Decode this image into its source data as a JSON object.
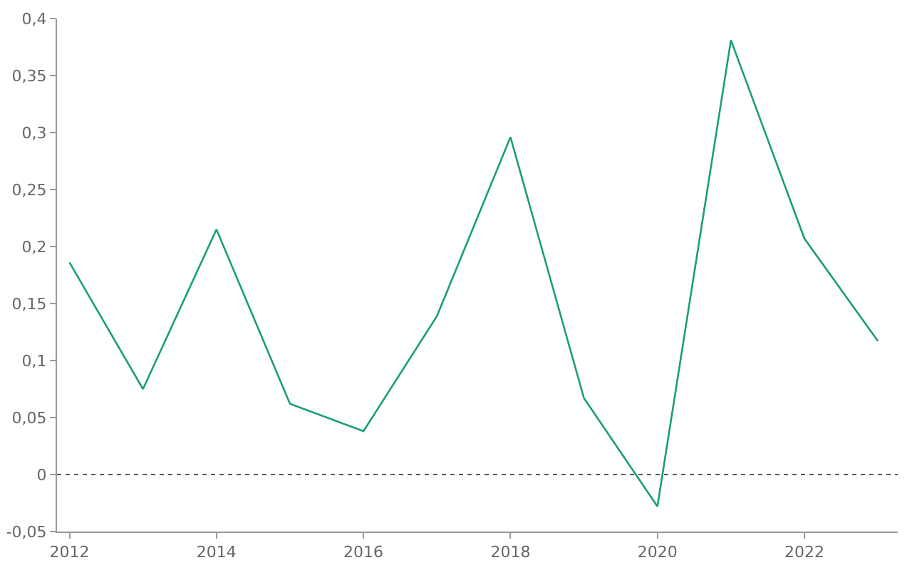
{
  "chart_data": {
    "type": "line",
    "x": [
      2012,
      2013,
      2014,
      2015,
      2016,
      2017,
      2018,
      2019,
      2020,
      2021,
      2022,
      2023
    ],
    "series": [
      {
        "color": "#1a9e77",
        "values": [
          0.186,
          0.075,
          0.215,
          0.062,
          0.038,
          0.139,
          0.296,
          0.067,
          -0.028,
          0.381,
          0.207,
          0.117
        ]
      }
    ],
    "xlim": [
      2011.83,
      2023.27
    ],
    "xticks": [
      2012,
      2014,
      2016,
      2018,
      2020,
      2022
    ],
    "ylim": [
      -0.05,
      0.4
    ],
    "yticks": [
      {
        "value": -0.05,
        "label": "-0,05"
      },
      0,
      {
        "value": 0.05,
        "label": "0,05"
      },
      {
        "value": 0.1,
        "label": "0,1"
      },
      {
        "value": 0.15,
        "label": "0,15"
      },
      {
        "value": 0.2,
        "label": "0,2"
      },
      {
        "value": 0.25,
        "label": "0,25"
      },
      {
        "value": 0.3,
        "label": "0,3"
      },
      {
        "value": 0.35,
        "label": "0,35"
      },
      {
        "value": 0.4,
        "label": "0,4"
      }
    ],
    "ref_lines": [
      {
        "axis": "y",
        "value": 0,
        "color": "#555555",
        "line_style": "dotted"
      }
    ],
    "grid": false,
    "marker": "none",
    "line_style": "solid"
  }
}
